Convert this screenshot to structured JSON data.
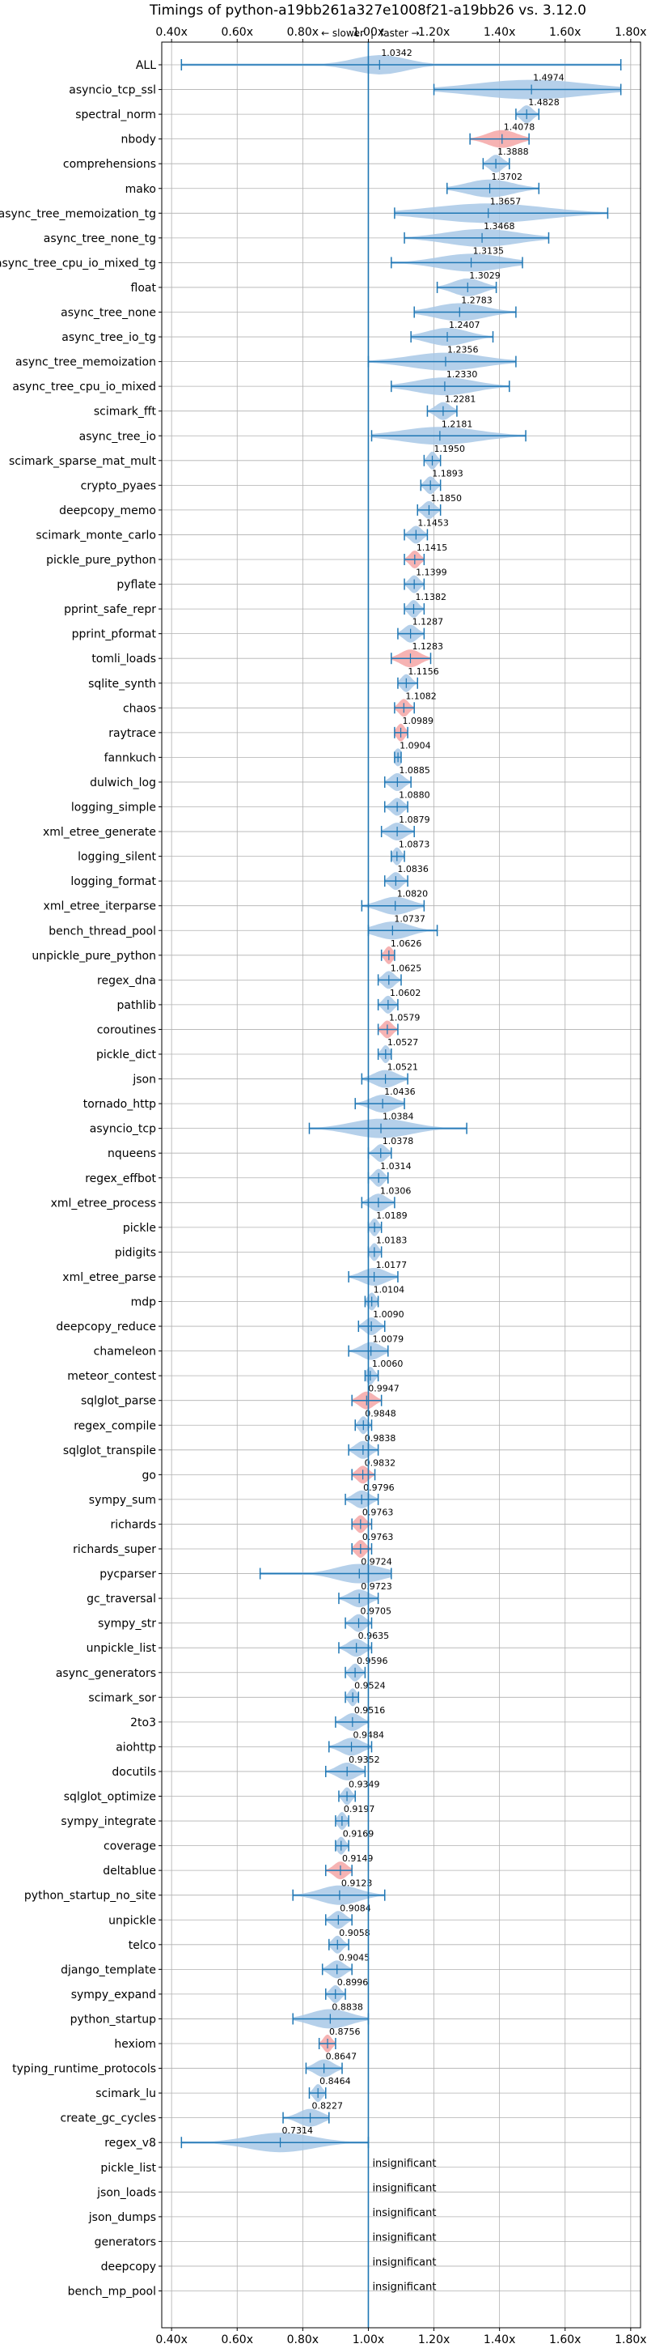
{
  "chart_data": {
    "type": "violin",
    "title": "Timings of python-a19bb261a327e1008f21-a19bb26 vs. 3.12.0",
    "direction_labels": {
      "slower": "← slower",
      "separator": "|",
      "faster": "faster →"
    },
    "xlim": [
      0.37,
      1.83
    ],
    "x_ticks": [
      0.4,
      0.6,
      0.8,
      1.0,
      1.2,
      1.4,
      1.6,
      1.8
    ],
    "x_tick_labels": [
      "0.40x",
      "0.60x",
      "0.80x",
      "1.00x",
      "1.20x",
      "1.40x",
      "1.60x",
      "1.80x"
    ],
    "reference_line": 1.0,
    "grid": true,
    "colors": {
      "violin": "#a8c8e6",
      "highlight": "#f4a6a6",
      "line": "#1f77b4"
    },
    "insignificant_label": "insignificant",
    "benchmarks": [
      {
        "name": "ALL",
        "value": 1.0342,
        "min": 0.43,
        "max": 1.77,
        "spread": 0.08
      },
      {
        "name": "asyncio_tcp_ssl",
        "value": 1.4974,
        "min": 1.2,
        "max": 1.77,
        "spread": 0.17
      },
      {
        "name": "spectral_norm",
        "value": 1.4828,
        "min": 1.45,
        "max": 1.52
      },
      {
        "name": "nbody",
        "value": 1.4078,
        "min": 1.31,
        "max": 1.49,
        "highlight": true
      },
      {
        "name": "comprehensions",
        "value": 1.3888,
        "min": 1.35,
        "max": 1.43
      },
      {
        "name": "mako",
        "value": 1.3702,
        "min": 1.24,
        "max": 1.52
      },
      {
        "name": "async_tree_memoization_tg",
        "value": 1.3657,
        "min": 1.08,
        "max": 1.73,
        "spread": 0.17
      },
      {
        "name": "async_tree_none_tg",
        "value": 1.3468,
        "min": 1.11,
        "max": 1.55
      },
      {
        "name": "async_tree_cpu_io_mixed_tg",
        "value": 1.3135,
        "min": 1.07,
        "max": 1.47
      },
      {
        "name": "float",
        "value": 1.3029,
        "min": 1.21,
        "max": 1.39
      },
      {
        "name": "async_tree_none",
        "value": 1.2783,
        "min": 1.14,
        "max": 1.45
      },
      {
        "name": "async_tree_io_tg",
        "value": 1.2407,
        "min": 1.13,
        "max": 1.38
      },
      {
        "name": "async_tree_memoization",
        "value": 1.2356,
        "min": 1.0,
        "max": 1.45
      },
      {
        "name": "async_tree_cpu_io_mixed",
        "value": 1.233,
        "min": 1.07,
        "max": 1.43
      },
      {
        "name": "scimark_fft",
        "value": 1.2281,
        "min": 1.18,
        "max": 1.27
      },
      {
        "name": "async_tree_io",
        "value": 1.2181,
        "min": 1.01,
        "max": 1.48
      },
      {
        "name": "scimark_sparse_mat_mult",
        "value": 1.195,
        "min": 1.17,
        "max": 1.22
      },
      {
        "name": "crypto_pyaes",
        "value": 1.1893,
        "min": 1.16,
        "max": 1.22
      },
      {
        "name": "deepcopy_memo",
        "value": 1.185,
        "min": 1.15,
        "max": 1.22
      },
      {
        "name": "scimark_monte_carlo",
        "value": 1.1453,
        "min": 1.11,
        "max": 1.18
      },
      {
        "name": "pickle_pure_python",
        "value": 1.1415,
        "min": 1.11,
        "max": 1.17,
        "highlight": true
      },
      {
        "name": "pyflate",
        "value": 1.1399,
        "min": 1.11,
        "max": 1.17
      },
      {
        "name": "pprint_safe_repr",
        "value": 1.1382,
        "min": 1.11,
        "max": 1.17
      },
      {
        "name": "pprint_pformat",
        "value": 1.1287,
        "min": 1.09,
        "max": 1.17
      },
      {
        "name": "tomli_loads",
        "value": 1.1283,
        "min": 1.07,
        "max": 1.19,
        "highlight": true
      },
      {
        "name": "sqlite_synth",
        "value": 1.1156,
        "min": 1.09,
        "max": 1.15
      },
      {
        "name": "chaos",
        "value": 1.1082,
        "min": 1.08,
        "max": 1.14,
        "highlight": true
      },
      {
        "name": "raytrace",
        "value": 1.0989,
        "min": 1.08,
        "max": 1.12,
        "highlight": true
      },
      {
        "name": "fannkuch",
        "value": 1.0904,
        "min": 1.08,
        "max": 1.1
      },
      {
        "name": "dulwich_log",
        "value": 1.0885,
        "min": 1.05,
        "max": 1.13
      },
      {
        "name": "logging_simple",
        "value": 1.088,
        "min": 1.05,
        "max": 1.12
      },
      {
        "name": "xml_etree_generate",
        "value": 1.0879,
        "min": 1.04,
        "max": 1.14
      },
      {
        "name": "logging_silent",
        "value": 1.0873,
        "min": 1.07,
        "max": 1.11
      },
      {
        "name": "logging_format",
        "value": 1.0836,
        "min": 1.05,
        "max": 1.12
      },
      {
        "name": "xml_etree_iterparse",
        "value": 1.082,
        "min": 0.98,
        "max": 1.17
      },
      {
        "name": "bench_thread_pool",
        "value": 1.0737,
        "min": 1.0,
        "max": 1.21
      },
      {
        "name": "unpickle_pure_python",
        "value": 1.0626,
        "min": 1.04,
        "max": 1.08,
        "highlight": true
      },
      {
        "name": "regex_dna",
        "value": 1.0625,
        "min": 1.03,
        "max": 1.1
      },
      {
        "name": "pathlib",
        "value": 1.0602,
        "min": 1.03,
        "max": 1.09
      },
      {
        "name": "coroutines",
        "value": 1.0579,
        "min": 1.03,
        "max": 1.09,
        "highlight": true
      },
      {
        "name": "pickle_dict",
        "value": 1.0527,
        "min": 1.03,
        "max": 1.07
      },
      {
        "name": "json",
        "value": 1.0521,
        "min": 0.98,
        "max": 1.12
      },
      {
        "name": "tornado_http",
        "value": 1.0436,
        "min": 0.96,
        "max": 1.11
      },
      {
        "name": "asyncio_tcp",
        "value": 1.0384,
        "min": 0.82,
        "max": 1.3,
        "spread": 0.09
      },
      {
        "name": "nqueens",
        "value": 1.0378,
        "min": 1.0,
        "max": 1.07
      },
      {
        "name": "regex_effbot",
        "value": 1.0314,
        "min": 1.0,
        "max": 1.06
      },
      {
        "name": "xml_etree_process",
        "value": 1.0306,
        "min": 0.98,
        "max": 1.08
      },
      {
        "name": "pickle",
        "value": 1.0189,
        "min": 1.0,
        "max": 1.04
      },
      {
        "name": "pidigits",
        "value": 1.0183,
        "min": 1.0,
        "max": 1.04
      },
      {
        "name": "xml_etree_parse",
        "value": 1.0177,
        "min": 0.94,
        "max": 1.09
      },
      {
        "name": "mdp",
        "value": 1.0104,
        "min": 0.99,
        "max": 1.03
      },
      {
        "name": "deepcopy_reduce",
        "value": 1.009,
        "min": 0.97,
        "max": 1.05
      },
      {
        "name": "chameleon",
        "value": 1.0079,
        "min": 0.94,
        "max": 1.06
      },
      {
        "name": "meteor_contest",
        "value": 1.006,
        "min": 0.99,
        "max": 1.03
      },
      {
        "name": "sqlglot_parse",
        "value": 0.9947,
        "min": 0.95,
        "max": 1.04,
        "highlight": true
      },
      {
        "name": "regex_compile",
        "value": 0.9848,
        "min": 0.96,
        "max": 1.01
      },
      {
        "name": "sqlglot_transpile",
        "value": 0.9838,
        "min": 0.94,
        "max": 1.03
      },
      {
        "name": "go",
        "value": 0.9832,
        "min": 0.95,
        "max": 1.02,
        "highlight": true
      },
      {
        "name": "sympy_sum",
        "value": 0.9796,
        "min": 0.93,
        "max": 1.03
      },
      {
        "name": "richards",
        "value": 0.9763,
        "min": 0.95,
        "max": 1.01,
        "highlight": true
      },
      {
        "name": "richards_super",
        "value": 0.9763,
        "min": 0.95,
        "max": 1.01,
        "highlight": true
      },
      {
        "name": "pycparser",
        "value": 0.9724,
        "min": 0.67,
        "max": 1.07,
        "spread": 0.07
      },
      {
        "name": "gc_traversal",
        "value": 0.9723,
        "min": 0.91,
        "max": 1.03
      },
      {
        "name": "sympy_str",
        "value": 0.9705,
        "min": 0.93,
        "max": 1.01
      },
      {
        "name": "unpickle_list",
        "value": 0.9635,
        "min": 0.91,
        "max": 1.01
      },
      {
        "name": "async_generators",
        "value": 0.9596,
        "min": 0.93,
        "max": 0.99
      },
      {
        "name": "scimark_sor",
        "value": 0.9524,
        "min": 0.93,
        "max": 0.97
      },
      {
        "name": "2to3",
        "value": 0.9516,
        "min": 0.9,
        "max": 1.0
      },
      {
        "name": "aiohttp",
        "value": 0.9484,
        "min": 0.88,
        "max": 1.01
      },
      {
        "name": "docutils",
        "value": 0.9352,
        "min": 0.87,
        "max": 0.99
      },
      {
        "name": "sqlglot_optimize",
        "value": 0.9349,
        "min": 0.91,
        "max": 0.96
      },
      {
        "name": "sympy_integrate",
        "value": 0.9197,
        "min": 0.9,
        "max": 0.94
      },
      {
        "name": "coverage",
        "value": 0.9169,
        "min": 0.9,
        "max": 0.94
      },
      {
        "name": "deltablue",
        "value": 0.9149,
        "min": 0.87,
        "max": 0.95,
        "highlight": true
      },
      {
        "name": "python_startup_no_site",
        "value": 0.9123,
        "min": 0.77,
        "max": 1.05,
        "spread": 0.06
      },
      {
        "name": "unpickle",
        "value": 0.9084,
        "min": 0.87,
        "max": 0.95
      },
      {
        "name": "telco",
        "value": 0.9058,
        "min": 0.88,
        "max": 0.94
      },
      {
        "name": "django_template",
        "value": 0.9045,
        "min": 0.86,
        "max": 0.95
      },
      {
        "name": "sympy_expand",
        "value": 0.8996,
        "min": 0.87,
        "max": 0.93
      },
      {
        "name": "python_startup",
        "value": 0.8838,
        "min": 0.77,
        "max": 1.0,
        "spread": 0.06
      },
      {
        "name": "hexiom",
        "value": 0.8756,
        "min": 0.85,
        "max": 0.9,
        "highlight": true
      },
      {
        "name": "typing_runtime_protocols",
        "value": 0.8647,
        "min": 0.81,
        "max": 0.92
      },
      {
        "name": "scimark_lu",
        "value": 0.8464,
        "min": 0.82,
        "max": 0.87
      },
      {
        "name": "create_gc_cycles",
        "value": 0.8227,
        "min": 0.74,
        "max": 0.88
      },
      {
        "name": "regex_v8",
        "value": 0.7314,
        "min": 0.43,
        "max": 1.0,
        "spread": 0.1
      },
      {
        "name": "pickle_list",
        "insignificant": true
      },
      {
        "name": "json_loads",
        "insignificant": true
      },
      {
        "name": "json_dumps",
        "insignificant": true
      },
      {
        "name": "generators",
        "insignificant": true
      },
      {
        "name": "deepcopy",
        "insignificant": true
      },
      {
        "name": "bench_mp_pool",
        "insignificant": true
      }
    ]
  }
}
